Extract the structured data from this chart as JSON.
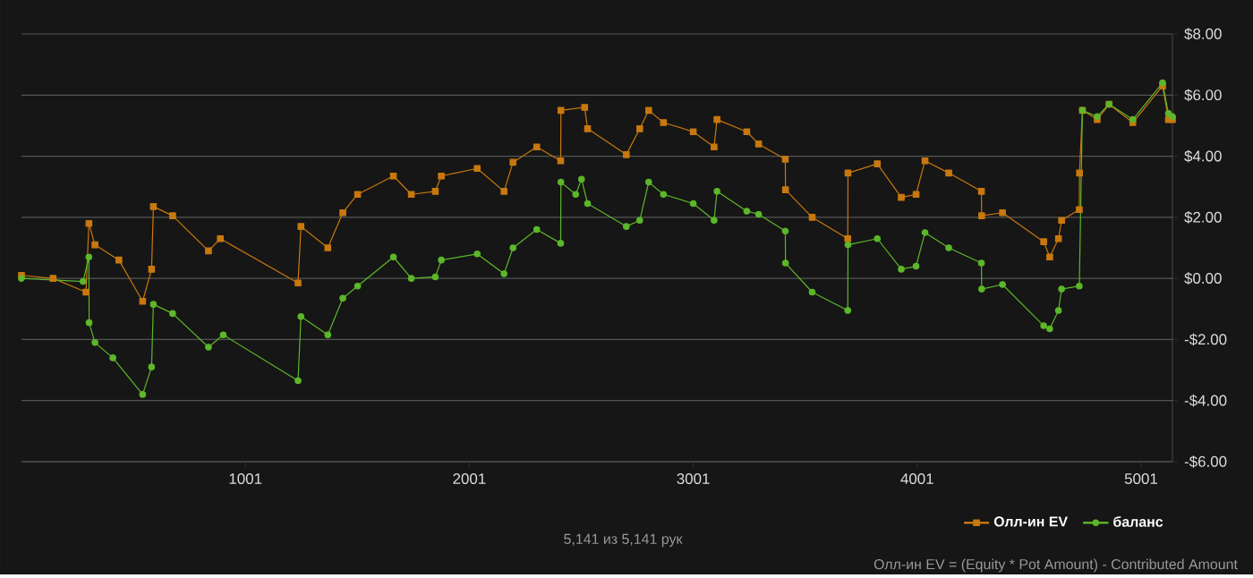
{
  "chart_data": {
    "type": "line",
    "xlim": [
      1,
      5141
    ],
    "ylim": [
      -6,
      8
    ],
    "xticks": [
      1001,
      2001,
      3001,
      4001,
      5001
    ],
    "yticks": [
      {
        "value": -6,
        "label": "-$6.00"
      },
      {
        "value": -4,
        "label": "-$4.00"
      },
      {
        "value": -2,
        "label": "-$2.00"
      },
      {
        "value": 0,
        "label": "$0.00"
      },
      {
        "value": 2,
        "label": "$2.00"
      },
      {
        "value": 4,
        "label": "$4.00"
      },
      {
        "value": 6,
        "label": "$6.00"
      },
      {
        "value": 8,
        "label": "$8.00"
      }
    ],
    "grid": "y",
    "legend": "bottom right",
    "annotations": [
      "5,141 из 5,141 рук",
      "Олл-ин EV = (Equity * Pot Amount) - Contributed Amount"
    ],
    "series": [
      {
        "name": "Олл-ин EV",
        "color": "#c8780f",
        "marker": "square",
        "x": [
          1,
          142,
          289,
          302,
          329,
          436,
          542,
          582,
          590,
          676,
          836,
          889,
          1236,
          1249,
          1369,
          1436,
          1502,
          1662,
          1742,
          1849,
          1876,
          2036,
          2156,
          2196,
          2302,
          2409,
          2410,
          2516,
          2529,
          2702,
          2762,
          2802,
          2868,
          3001,
          3094,
          3107,
          3240,
          3293,
          3412,
          3413,
          3532,
          3691,
          3692,
          3823,
          3930,
          3996,
          4036,
          4142,
          4288,
          4289,
          4382,
          4566,
          4593,
          4632,
          4646,
          4725,
          4726,
          4739,
          4805,
          4858,
          4964,
          5097,
          5123,
          5141
        ],
        "values": [
          0.1,
          0.0,
          -0.45,
          1.8,
          1.1,
          0.6,
          -0.75,
          0.3,
          2.35,
          2.05,
          0.9,
          1.3,
          -0.15,
          1.7,
          1.0,
          2.15,
          2.75,
          3.35,
          2.75,
          2.85,
          3.35,
          3.6,
          2.85,
          3.8,
          4.3,
          3.85,
          5.5,
          5.6,
          4.9,
          4.05,
          4.9,
          5.5,
          5.1,
          4.8,
          4.3,
          5.2,
          4.8,
          4.4,
          3.9,
          2.9,
          2.0,
          1.3,
          3.45,
          3.75,
          2.65,
          2.75,
          3.85,
          3.45,
          2.85,
          2.05,
          2.15,
          1.2,
          0.7,
          1.3,
          1.9,
          2.25,
          3.45,
          5.5,
          5.2,
          5.7,
          5.1,
          6.3,
          5.2,
          5.2
        ]
      },
      {
        "name": "баланс",
        "color": "#5cb82a",
        "marker": "circle",
        "x": [
          1,
          276,
          302,
          303,
          329,
          409,
          542,
          582,
          590,
          676,
          836,
          902,
          1236,
          1249,
          1369,
          1436,
          1502,
          1662,
          1742,
          1849,
          1876,
          2036,
          2156,
          2196,
          2302,
          2409,
          2410,
          2476,
          2502,
          2529,
          2702,
          2762,
          2802,
          2868,
          3001,
          3094,
          3107,
          3240,
          3293,
          3412,
          3413,
          3532,
          3691,
          3692,
          3823,
          3930,
          3996,
          4036,
          4142,
          4288,
          4289,
          4382,
          4566,
          4593,
          4632,
          4646,
          4725,
          4739,
          4805,
          4858,
          4964,
          5097,
          5123,
          5141
        ],
        "values": [
          0.0,
          -0.1,
          0.7,
          -1.45,
          -2.1,
          -2.6,
          -3.8,
          -2.9,
          -0.85,
          -1.15,
          -2.25,
          -1.85,
          -3.35,
          -1.25,
          -1.85,
          -0.65,
          -0.25,
          0.7,
          0.0,
          0.05,
          0.6,
          0.8,
          0.15,
          1.0,
          1.6,
          1.15,
          3.15,
          2.75,
          3.25,
          2.45,
          1.7,
          1.9,
          3.15,
          2.75,
          2.45,
          1.9,
          2.85,
          2.2,
          2.1,
          1.55,
          0.5,
          -0.45,
          -1.05,
          1.1,
          1.3,
          0.3,
          0.4,
          1.5,
          1.0,
          0.5,
          -0.35,
          -0.2,
          -1.55,
          -1.65,
          -1.05,
          -0.35,
          -0.25,
          5.5,
          5.3,
          5.7,
          5.2,
          6.4,
          5.4,
          5.3
        ]
      }
    ]
  }
}
